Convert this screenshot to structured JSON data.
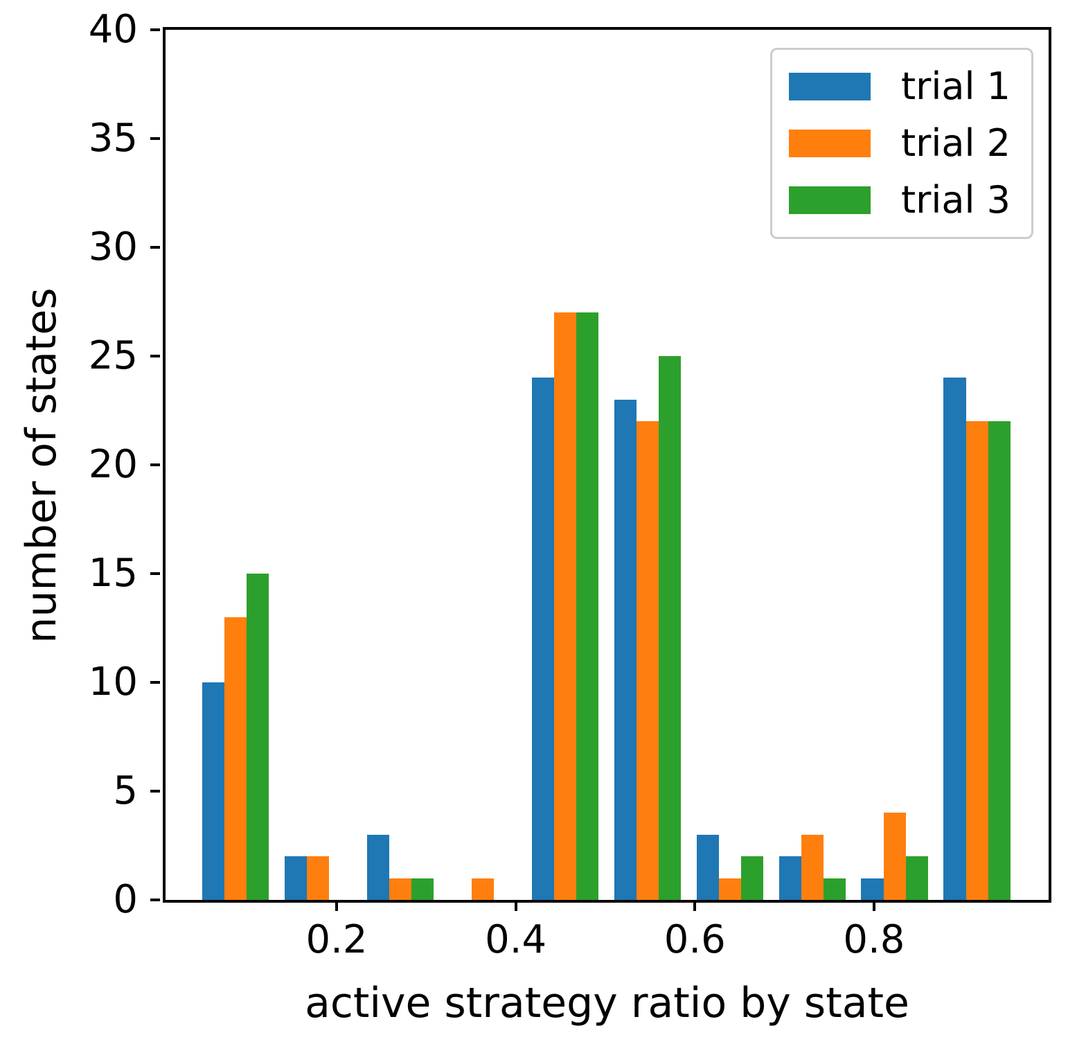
{
  "figure": {
    "xlabel": "active strategy ratio by state",
    "ylabel": "number of states"
  },
  "chart_data": {
    "type": "bar",
    "title": "",
    "xlabel": "active strategy ratio by state",
    "ylabel": "number of states",
    "xlim": [
      0.009,
      0.995
    ],
    "ylim": [
      0,
      40
    ],
    "xticks": [
      0.2,
      0.4,
      0.6,
      0.8
    ],
    "yticks": [
      0,
      5,
      10,
      15,
      20,
      25,
      30,
      35,
      40
    ],
    "grid": false,
    "legend_position": "upper right",
    "bin_centers": [
      0.087,
      0.179,
      0.271,
      0.363,
      0.455,
      0.547,
      0.639,
      0.731,
      0.823,
      0.915
    ],
    "bar_width": 0.0248,
    "series": [
      {
        "name": "trial 1",
        "color": "#1f77b4",
        "values": [
          10,
          2,
          3,
          0,
          24,
          23,
          3,
          2,
          1,
          24
        ]
      },
      {
        "name": "trial 2",
        "color": "#ff7f0e",
        "values": [
          13,
          2,
          1,
          1,
          27,
          22,
          1,
          3,
          4,
          22
        ]
      },
      {
        "name": "trial 3",
        "color": "#2ca02c",
        "values": [
          15,
          0,
          1,
          0,
          27,
          25,
          2,
          1,
          2,
          22
        ]
      }
    ]
  }
}
